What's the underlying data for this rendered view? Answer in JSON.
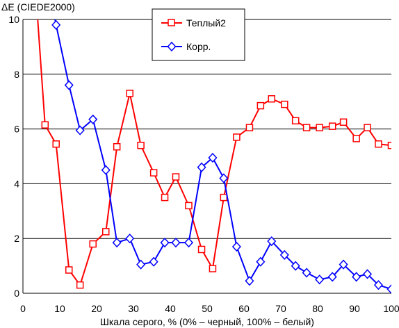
{
  "chart_data": {
    "type": "line",
    "ylabel": "ΔE (CIEDE2000)",
    "xlabel": "Шкала серого, % (0% – черный, 100% – белый)",
    "xlim": [
      0,
      100
    ],
    "ylim": [
      0,
      10
    ],
    "xticks": [
      0,
      10,
      20,
      30,
      40,
      50,
      60,
      70,
      80,
      90,
      100
    ],
    "yticks": [
      0,
      2,
      4,
      6,
      8,
      10
    ],
    "xtick_labels": [
      "0",
      "10",
      "20",
      "30",
      "40",
      "50",
      "60",
      "70",
      "80",
      "90",
      "100"
    ],
    "ytick_labels": [
      "0",
      "2",
      "4",
      "6",
      "8",
      "10"
    ],
    "grid": "horizontal",
    "legend_position": "top-center",
    "series": [
      {
        "name": "Теплый2",
        "color": "#ff0000",
        "marker": "square",
        "x": [
          3.5,
          6.0,
          9.0,
          12.5,
          15.5,
          19.0,
          22.5,
          25.5,
          29.0,
          32.0,
          35.5,
          38.5,
          41.5,
          45.0,
          48.5,
          51.5,
          54.5,
          58.0,
          61.5,
          64.5,
          67.5,
          71.0,
          74.0,
          77.0,
          80.5,
          84.0,
          87.0,
          90.5,
          93.5,
          96.5,
          100.0
        ],
        "y": [
          11.0,
          6.15,
          5.45,
          0.85,
          0.3,
          1.8,
          2.25,
          5.35,
          7.3,
          5.4,
          4.4,
          3.5,
          4.25,
          3.2,
          1.6,
          0.9,
          3.5,
          5.7,
          6.05,
          6.85,
          7.1,
          6.9,
          6.3,
          6.05,
          6.05,
          6.1,
          6.25,
          5.65,
          6.05,
          5.45,
          5.4
        ]
      },
      {
        "name": "Корр.",
        "color": "#0000ff",
        "marker": "diamond",
        "x": [
          8.0,
          9.0,
          12.5,
          15.5,
          19.0,
          22.5,
          25.5,
          29.0,
          32.0,
          35.5,
          38.5,
          41.5,
          45.0,
          48.5,
          51.5,
          54.5,
          58.0,
          61.5,
          64.5,
          67.5,
          71.0,
          74.0,
          77.0,
          80.5,
          84.0,
          87.0,
          90.5,
          93.5,
          96.5,
          100.0
        ],
        "y": [
          10.5,
          9.8,
          7.6,
          5.95,
          6.35,
          4.5,
          1.85,
          2.0,
          1.05,
          1.15,
          1.85,
          1.85,
          1.85,
          4.6,
          4.95,
          4.2,
          1.7,
          0.45,
          1.15,
          1.9,
          1.4,
          1.0,
          0.75,
          0.5,
          0.6,
          1.05,
          0.6,
          0.7,
          0.3,
          0.15
        ]
      }
    ]
  }
}
